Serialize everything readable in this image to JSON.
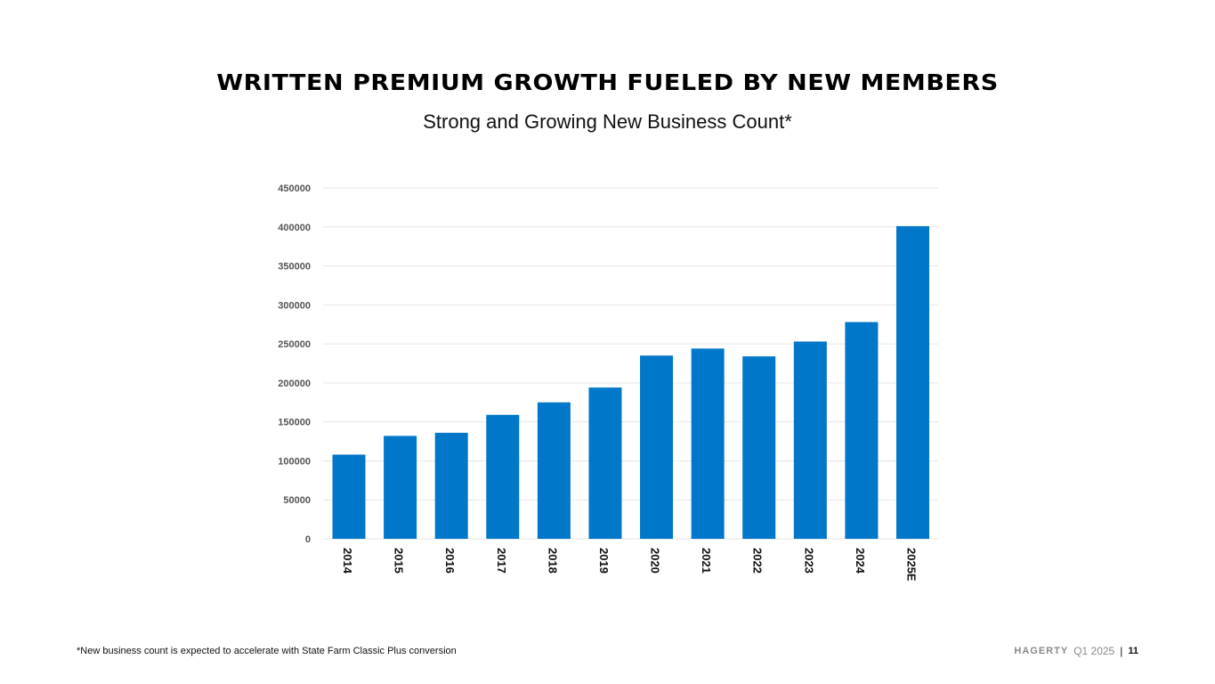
{
  "title": "WRITTEN PREMIUM GROWTH FUELED BY NEW MEMBERS",
  "subtitle": "Strong and Growing New Business Count*",
  "footnote": "*New business count is expected to accelerate with State Farm Classic Plus conversion",
  "footer": {
    "brand": "HAGERTY",
    "quarter": "Q1 2025",
    "divider": "|",
    "page": "11"
  },
  "colors": {
    "bar": "#0077C8",
    "grid": "#e6e6e6",
    "axis_text": "#555555"
  },
  "chart_data": {
    "type": "bar",
    "categories": [
      "2014",
      "2015",
      "2016",
      "2017",
      "2018",
      "2019",
      "2020",
      "2021",
      "2022",
      "2023",
      "2024",
      "2025E"
    ],
    "values": [
      108000,
      132000,
      136000,
      159000,
      175000,
      194000,
      235000,
      244000,
      234000,
      253000,
      278000,
      401000
    ],
    "yticks": [
      0,
      50000,
      100000,
      150000,
      200000,
      250000,
      300000,
      350000,
      400000,
      450000
    ],
    "ylim": [
      0,
      450000
    ],
    "grid": true,
    "legend": "none"
  }
}
